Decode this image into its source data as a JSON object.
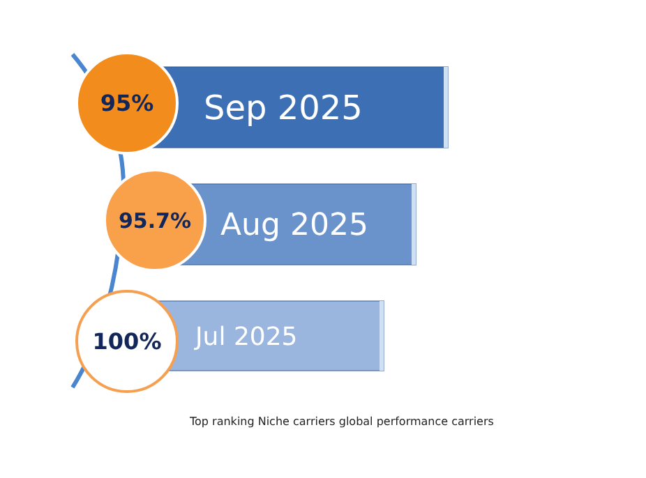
{
  "chart_data": {
    "type": "other",
    "categories": [
      "Sep 2025",
      "Aug 2025",
      "Jul 2025"
    ],
    "values": [
      95,
      95.7,
      100
    ],
    "value_labels": [
      "95%",
      "95.7%",
      "100%"
    ],
    "colors": [
      "#f28c1c",
      "#f9a04a",
      "#ffffff"
    ],
    "annotations": [
      "Top ranking Niche carriers global performance carriers"
    ]
  }
}
